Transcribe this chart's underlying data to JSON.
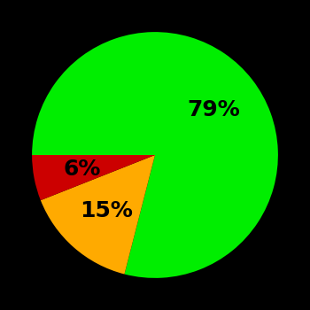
{
  "slices": [
    79,
    15,
    6
  ],
  "colors": [
    "#00ee00",
    "#ffaa00",
    "#cc0000"
  ],
  "labels": [
    "79%",
    "15%",
    "6%"
  ],
  "background_color": "#000000",
  "label_fontsize": 18,
  "label_fontweight": "bold",
  "startangle": 180,
  "figsize": [
    3.5,
    3.5
  ],
  "dpi": 100
}
